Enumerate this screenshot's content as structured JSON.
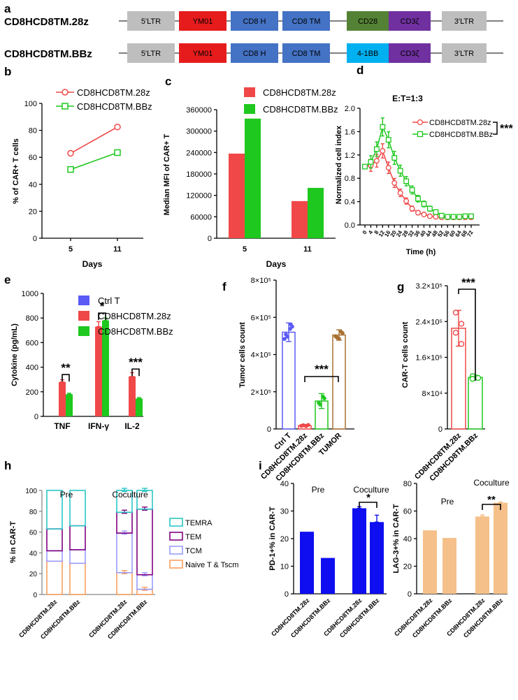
{
  "colors": {
    "red": "#f04848",
    "green": "#1ec81e",
    "blue": "#5a5af5",
    "brown": "#a87030",
    "purple": "#800080",
    "cyan": "#29c6c6",
    "lavender": "#9a9cff",
    "orange": "#f8a060",
    "darkblue": "#0e0ef0",
    "peach": "#f5c08a",
    "ltr": "#bebebe",
    "ym01": "#e61c1c",
    "cd8": "#4472c4",
    "cd28": "#548235",
    "cd3z": "#7030a0",
    "bb": "#00b0f0"
  },
  "panel_a": {
    "label": "a",
    "constructs": [
      {
        "name": "CD8HCD8TM.28z",
        "segments": [
          "5'LTR",
          "YM01",
          "CD8 H",
          "CD8 TM",
          "CD28",
          "CD3ζ",
          "3'LTR"
        ]
      },
      {
        "name": "CD8HCD8TM.BBz",
        "segments": [
          "5'LTR",
          "YM01",
          "CD8 H",
          "CD8 TM",
          "4-1BB",
          "CD3ζ",
          "3'LTR"
        ]
      }
    ]
  },
  "chart_data": [
    {
      "panel": "b",
      "type": "line",
      "xlabel": "Days",
      "ylabel": "% of CAR+ T cells",
      "categories": [
        "5",
        "11"
      ],
      "ylim": [
        0,
        100
      ],
      "yticks": [
        "0",
        "20",
        "40",
        "60",
        "80",
        "100"
      ],
      "series": [
        {
          "name": "CD8HCD8TM.28z",
          "values": [
            63,
            82.5
          ]
        },
        {
          "name": "CD8HCD8TM.BBz",
          "values": [
            51,
            63.5
          ]
        }
      ]
    },
    {
      "panel": "c",
      "type": "bar",
      "xlabel": "Days",
      "ylabel": "Median MFI of CAR+ T",
      "categories": [
        "5",
        "11"
      ],
      "ylim": [
        0,
        360000
      ],
      "yticks": [
        "0",
        "60000",
        "120000",
        "180000",
        "240000",
        "300000",
        "360000"
      ],
      "series": [
        {
          "name": "CD8HCD8TM.28z",
          "values": [
            237000,
            104000
          ]
        },
        {
          "name": "CD8HCD8TM.BBz",
          "values": [
            335000,
            141000
          ]
        }
      ]
    },
    {
      "panel": "d",
      "type": "line",
      "title": "E:T=1:3",
      "xlabel": "Time (h)",
      "ylabel": "Normalized cell index",
      "x": [
        0,
        4,
        8,
        12,
        16,
        20,
        24,
        28,
        32,
        36,
        40,
        44,
        48,
        52,
        56,
        60,
        64,
        68,
        72
      ],
      "xticks": [
        "0",
        "4",
        "8",
        "12",
        "16",
        "20",
        "24",
        "28",
        "32",
        "36",
        "40",
        "44",
        "48",
        "52",
        "56",
        "60",
        "64",
        "68",
        "72"
      ],
      "ylim": [
        0,
        2.0
      ],
      "yticks": [
        "0.0",
        "0.4",
        "0.8",
        "1.2",
        "1.6",
        "2.0"
      ],
      "series": [
        {
          "name": "CD8HCD8TM.28z",
          "values": [
            1.0,
            1.02,
            1.1,
            1.27,
            0.98,
            0.72,
            0.55,
            0.41,
            0.28,
            0.21,
            0.18,
            0.15,
            0.14,
            0.13,
            0.13,
            0.13,
            0.13,
            0.13,
            0.13
          ]
        },
        {
          "name": "CD8HCD8TM.BBz",
          "values": [
            1.0,
            1.08,
            1.3,
            1.68,
            1.46,
            1.15,
            0.93,
            0.75,
            0.6,
            0.45,
            0.36,
            0.28,
            0.22,
            0.16,
            0.14,
            0.14,
            0.14,
            0.15,
            0.15
          ]
        }
      ],
      "significance": "***"
    },
    {
      "panel": "e",
      "type": "bar",
      "xlabel": "",
      "ylabel": "Cytokine (pg/mL)",
      "categories": [
        "TNF",
        "IFN-γ",
        "IL-2"
      ],
      "ylim": [
        0,
        1000
      ],
      "yticks": [
        "0",
        "200",
        "400",
        "600",
        "800",
        "1000"
      ],
      "series": [
        {
          "name": "Ctrl T",
          "values": [
            0,
            0,
            0
          ]
        },
        {
          "name": "CD8HCD8TM.28z",
          "values": [
            280,
            730,
            325
          ]
        },
        {
          "name": "CD8HCD8TM.BBz",
          "values": [
            180,
            780,
            145
          ]
        }
      ],
      "significance": [
        "**",
        "*",
        "***"
      ]
    },
    {
      "panel": "f",
      "type": "bar",
      "ylabel": "Tumor cells count",
      "categories": [
        "Ctrl T",
        "CD8HCD8TM.28z",
        "CD8HCD8TM.BBz",
        "TUMOR"
      ],
      "values": [
        520000,
        18000,
        150000,
        505000
      ],
      "ylim": [
        0,
        800000
      ],
      "yticks": [
        "0",
        "2×10⁵",
        "4×10⁵",
        "6×10⁵",
        "8×10⁵"
      ],
      "significance": "***"
    },
    {
      "panel": "g",
      "type": "bar",
      "ylabel": "CAR-T cells count",
      "categories": [
        "CD8HCD8TM.28z",
        "CD8HCD8TM.BBz"
      ],
      "values": [
        225000,
        115000
      ],
      "ylim": [
        0,
        320000
      ],
      "yticks": [
        "0",
        "8×10⁴",
        "1.6×10⁵",
        "2.4×10⁵",
        "3.2×10⁵"
      ],
      "significance": "***"
    },
    {
      "panel": "h",
      "type": "bar",
      "subtype": "stacked",
      "ylabel": "% in CAR-T",
      "groups": [
        "Pre",
        "Coculture"
      ],
      "categories": [
        "CD8HCD8TM.28z",
        "CD8HCD8TM.BBz",
        "CD8HCD8TM.28z",
        "CD8HCD8TM.BBz"
      ],
      "ylim": [
        0,
        100
      ],
      "yticks": [
        "0",
        "20",
        "40",
        "60",
        "80",
        "100"
      ],
      "series": [
        {
          "name": "Naive T & Tscm",
          "values": [
            32,
            30,
            21,
            5
          ]
        },
        {
          "name": "TCM",
          "values": [
            10,
            13,
            38,
            14
          ]
        },
        {
          "name": "TEM",
          "values": [
            21,
            23,
            20,
            63
          ]
        },
        {
          "name": "TEMRA",
          "values": [
            37,
            34,
            21,
            18
          ]
        }
      ]
    },
    {
      "panel": "i",
      "type": "bar",
      "ylabel": "PD-1+% in CAR-T",
      "groups": [
        "Pre",
        "Coculture"
      ],
      "categories": [
        "CD8HCD8TM.28z",
        "CD8HCD8TM.BBz",
        "CD8HCD8TM.28z",
        "CD8HCD8TM.BBz"
      ],
      "values": [
        22.5,
        13,
        31,
        26
      ],
      "ylim": [
        0,
        40
      ],
      "yticks": [
        "0",
        "10",
        "20",
        "30",
        "40"
      ],
      "significance": "*"
    },
    {
      "panel": "i2",
      "type": "bar",
      "ylabel": "LAG-3+% in CAR-T",
      "groups": [
        "Pre",
        "Coculture"
      ],
      "categories": [
        "CD8HCD8TM.28z",
        "CD8HCD8TM.BBz",
        "CD8HCD8TM.28z",
        "CD8HCD8TM.BBz"
      ],
      "values": [
        46,
        40.5,
        56,
        66
      ],
      "ylim": [
        0,
        80
      ],
      "yticks": [
        "0",
        "20",
        "40",
        "60",
        "80"
      ],
      "significance": "**"
    }
  ]
}
